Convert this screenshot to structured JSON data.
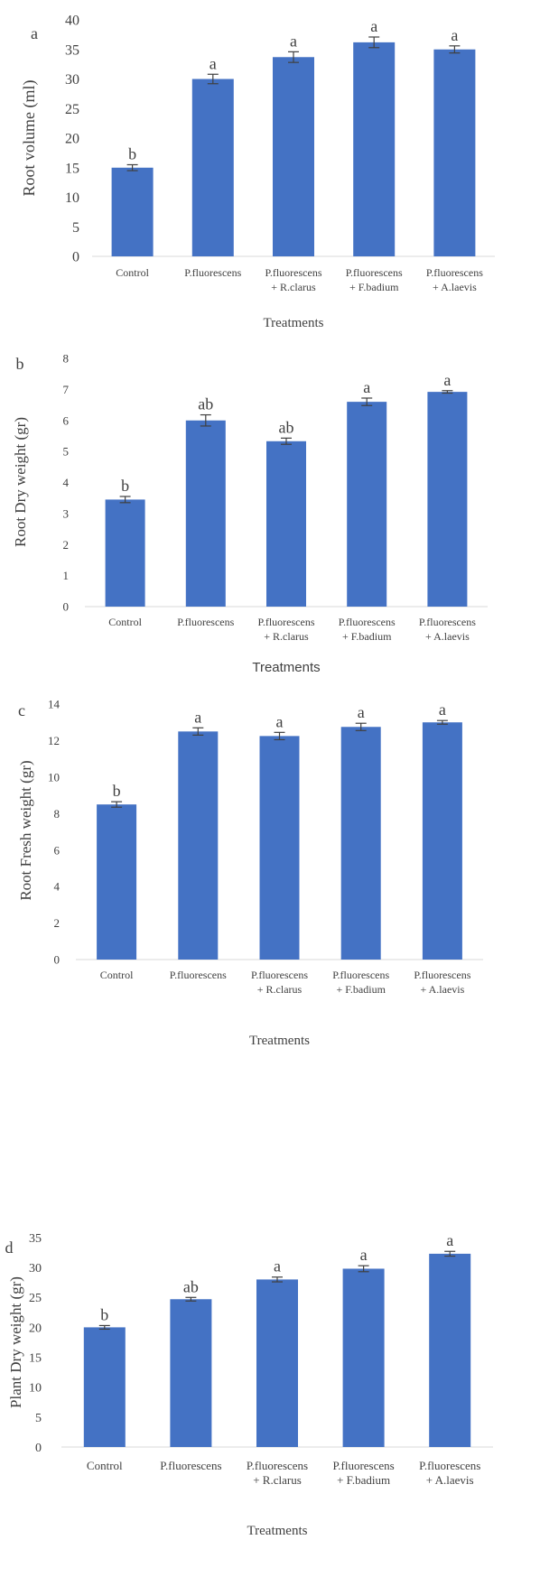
{
  "colors": {
    "bar": "#4472c4",
    "error": "#404040",
    "text": "#404040",
    "axis": "#d9d9d9"
  },
  "chart_data": [
    {
      "panel": "a",
      "type": "bar",
      "categories": [
        "Control",
        "P.fluorescens",
        "P.fluorescens\n+ R.clarus",
        "P.fluorescens\n+ F.badium",
        "P.fluorescens\n+ A.laevis"
      ],
      "values": [
        15.0,
        30.0,
        33.7,
        36.2,
        35.0
      ],
      "errors": [
        0.5,
        0.8,
        0.9,
        0.9,
        0.6
      ],
      "letters": [
        "b",
        "a",
        "a",
        "a",
        "a"
      ],
      "ylabel": "Root volume (ml)",
      "xlabel": "Treatments",
      "ylim": [
        0,
        40
      ],
      "yticks": [
        0,
        5,
        10,
        15,
        20,
        25,
        30,
        35,
        40
      ]
    },
    {
      "panel": "b",
      "type": "bar",
      "categories": [
        "Control",
        "P.fluorescens",
        "P.fluorescens\n+ R.clarus",
        "P.fluorescens\n+ F.badium",
        "P.fluorescens\n+ A.laevis"
      ],
      "values": [
        3.45,
        6.0,
        5.33,
        6.6,
        6.92
      ],
      "errors": [
        0.1,
        0.18,
        0.1,
        0.12,
        0.04
      ],
      "letters": [
        "b",
        "ab",
        "ab",
        "a",
        "a"
      ],
      "ylabel": "Root Dry weight (gr)",
      "xlabel": "Treatments",
      "ylim": [
        0,
        8
      ],
      "yticks": [
        0,
        1,
        2,
        3,
        4,
        5,
        6,
        7,
        8
      ]
    },
    {
      "panel": "c",
      "type": "bar",
      "categories": [
        "Control",
        "P.fluorescens",
        "P.fluorescens\n+ R.clarus",
        "P.fluorescens\n+ F.badium",
        "P.fluorescens\n+ A.laevis"
      ],
      "values": [
        8.5,
        12.5,
        12.25,
        12.75,
        13.0
      ],
      "errors": [
        0.15,
        0.2,
        0.2,
        0.2,
        0.1
      ],
      "letters": [
        "b",
        "a",
        "a",
        "a",
        "a"
      ],
      "ylabel": "Root Fresh weight (gr)",
      "xlabel": "Treatments",
      "ylim": [
        0,
        14
      ],
      "yticks": [
        0,
        2,
        4,
        6,
        8,
        10,
        12,
        14
      ]
    },
    {
      "panel": "d",
      "type": "bar",
      "categories": [
        "Control",
        "P.fluorescens",
        "P.fluorescens\n+ R.clarus",
        "P.fluorescens\n+ F.badium",
        "P.fluorescens\n+ A.laevis"
      ],
      "values": [
        20.0,
        24.7,
        28.0,
        29.8,
        32.3
      ],
      "errors": [
        0.3,
        0.3,
        0.4,
        0.5,
        0.4
      ],
      "letters": [
        "b",
        "ab",
        "a",
        "a",
        "a"
      ],
      "ylabel": "Plant Dry weight (gr)",
      "xlabel": "Treatments",
      "ylim": [
        0,
        35
      ],
      "yticks": [
        0,
        5,
        10,
        15,
        20,
        25,
        30,
        35
      ]
    }
  ]
}
